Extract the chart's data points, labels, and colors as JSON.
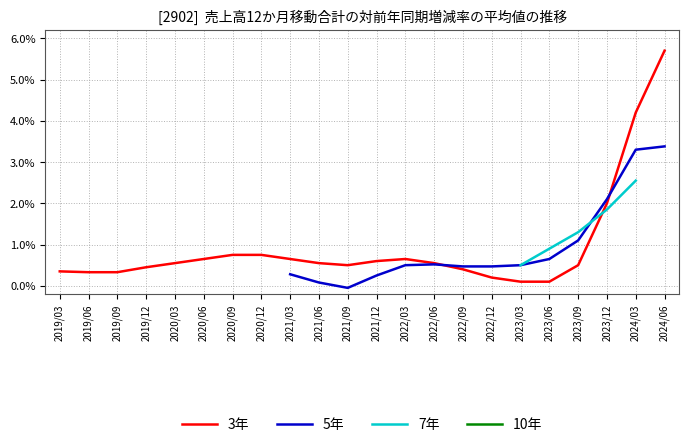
{
  "title": "[2902]  売上高12か月移動合計の対前年同期増減率の平均値の推移",
  "ylim": [
    -0.002,
    0.062
  ],
  "yticks": [
    0.0,
    0.01,
    0.02,
    0.03,
    0.04,
    0.05,
    0.06
  ],
  "background_color": "#ffffff",
  "plot_bg_color": "#ffffff",
  "grid_color": "#aaaaaa",
  "legend_entries": [
    "3年",
    "5年",
    "7年",
    "10年"
  ],
  "legend_colors": [
    "#ff0000",
    "#0000cc",
    "#00cccc",
    "#008800"
  ],
  "x_labels": [
    "2019/03",
    "2019/06",
    "2019/09",
    "2019/12",
    "2020/03",
    "2020/06",
    "2020/09",
    "2020/12",
    "2021/03",
    "2021/06",
    "2021/09",
    "2021/12",
    "2022/03",
    "2022/06",
    "2022/09",
    "2022/12",
    "2023/03",
    "2023/06",
    "2023/09",
    "2023/12",
    "2024/03",
    "2024/06"
  ],
  "series_3y": [
    0.0035,
    0.0033,
    0.0033,
    0.0045,
    0.0055,
    0.0065,
    0.0075,
    0.0075,
    0.0065,
    0.0055,
    0.005,
    0.006,
    0.0065,
    0.0055,
    0.004,
    0.002,
    0.001,
    0.001,
    0.005,
    0.02,
    0.042,
    0.057
  ],
  "series_5y": [
    null,
    null,
    null,
    null,
    null,
    null,
    null,
    null,
    0.0028,
    0.0008,
    -0.0005,
    0.0025,
    0.005,
    0.0052,
    0.0047,
    0.0047,
    0.005,
    0.0065,
    0.011,
    0.021,
    0.033,
    0.0338
  ],
  "series_7y": [
    null,
    null,
    null,
    null,
    null,
    null,
    null,
    null,
    null,
    null,
    null,
    null,
    null,
    null,
    null,
    null,
    0.005,
    0.009,
    0.013,
    0.0185,
    0.0255,
    null
  ],
  "series_10y": [
    null,
    null,
    null,
    null,
    null,
    null,
    null,
    null,
    null,
    null,
    null,
    null,
    null,
    null,
    null,
    null,
    null,
    null,
    null,
    null,
    null,
    null
  ]
}
